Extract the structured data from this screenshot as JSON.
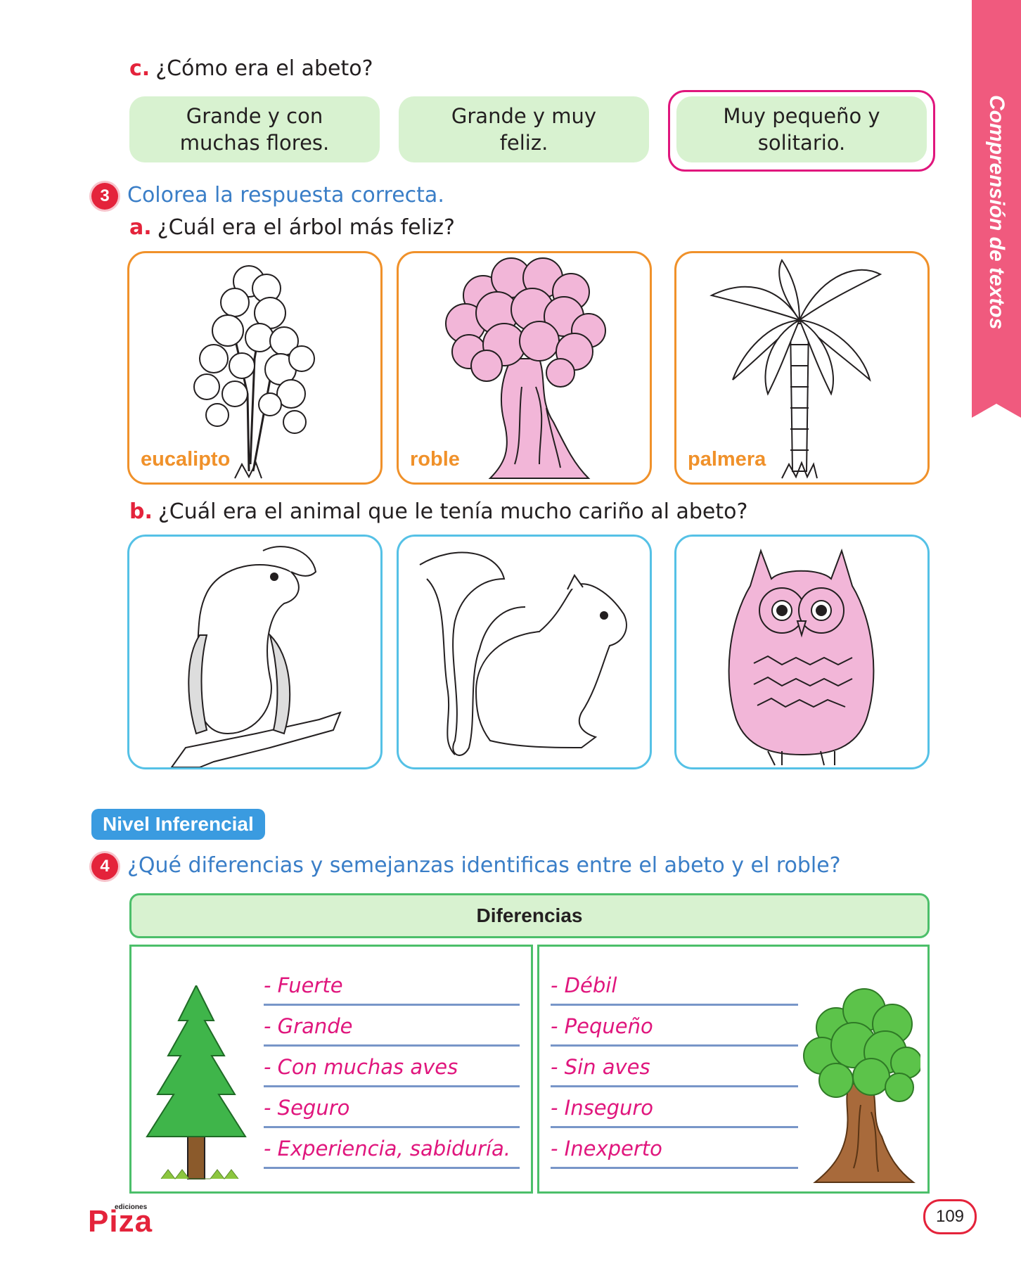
{
  "side_tab": {
    "label": "Comprensión de textos"
  },
  "question_c": {
    "letter": "c.",
    "text": "¿Cómo era el abeto?",
    "options": [
      "Grande y con muchas flores.",
      "Grande y muy feliz.",
      "Muy pequeño y solitario."
    ],
    "selected_index": 2
  },
  "item3": {
    "number": "3",
    "instruction": "Colorea la respuesta correcta.",
    "a": {
      "letter": "a.",
      "text": "¿Cuál era el árbol más feliz?",
      "cards": [
        "eucalipto",
        "roble",
        "palmera"
      ],
      "colored_index": 1
    },
    "b": {
      "letter": "b.",
      "text": "¿Cuál era el animal que le tenía mucho cariño al abeto?",
      "animal_icons": [
        "bird-icon",
        "squirrel-icon",
        "owl-icon"
      ],
      "colored_index": 2
    }
  },
  "level_badge": "Nivel Inferencial",
  "item4": {
    "number": "4",
    "question": "¿Qué diferencias y semejanzas identificas entre el abeto y el roble?",
    "table_header": "Diferencias",
    "left_answers": [
      "- Fuerte",
      "- Grande",
      "- Con muchas aves",
      "- Seguro",
      "- Experiencia, sabiduría."
    ],
    "right_answers": [
      "- Débil",
      "- Pequeño",
      "- Sin aves",
      "- Inseguro",
      "- Inexperto"
    ]
  },
  "footer": {
    "logo_small": "ediciones",
    "logo": "Piza",
    "page_number": "109"
  },
  "colors": {
    "red": "#e4233b",
    "pink": "#e0167d",
    "blue": "#3a7ec7",
    "green": "#4cbf6a",
    "orange": "#f0912a",
    "cyan": "#55c1e6",
    "side_tab": "#f05a7e"
  }
}
